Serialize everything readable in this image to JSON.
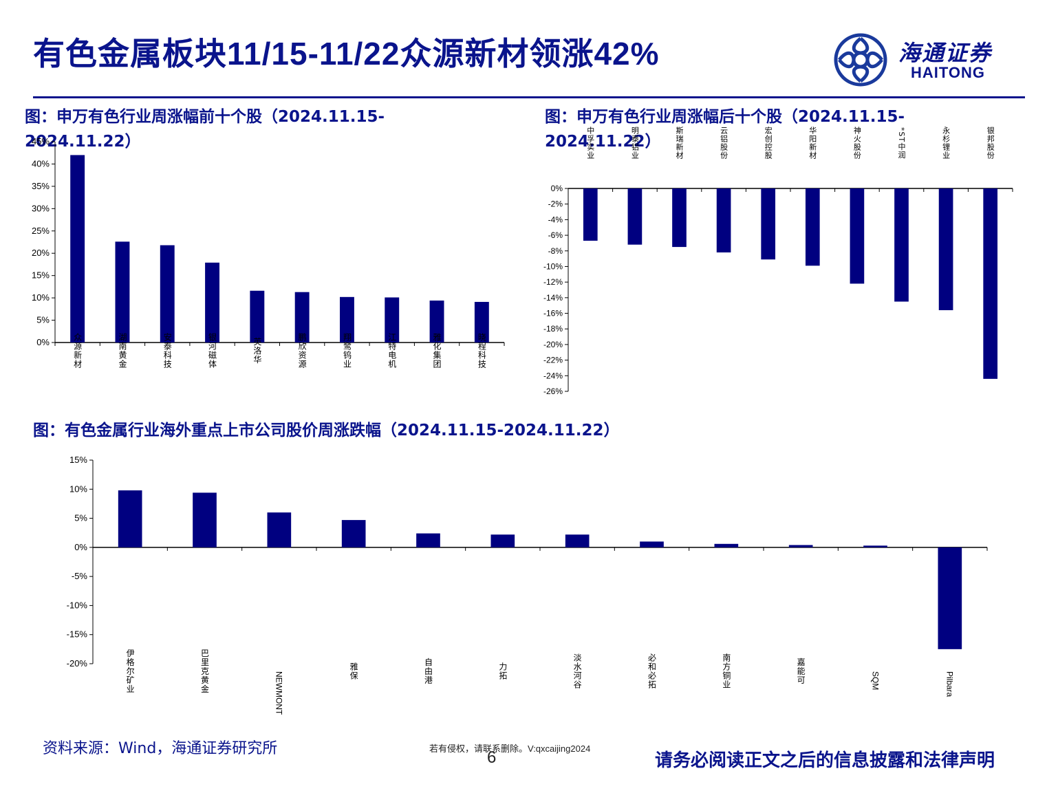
{
  "header": {
    "title": "有色金属板块11/15-11/22众源新材领涨42%",
    "logo_cn": "海通证券",
    "logo_en": "HAITONG"
  },
  "captions": {
    "chart1_line1": "图：申万有色行业周涨幅前十个股（2024.11.15-",
    "chart1_line2": "2024.11.22）",
    "chart2_line1": "图：申万有色行业周涨幅后十个股（2024.11.15-",
    "chart2_line2": "2024.11.22）",
    "chart3": "图：有色金属行业海外重点上市公司股价周涨跌幅（2024.11.15-2024.11.22）"
  },
  "footer": {
    "source": "资料来源：Wind，海通证券研究所",
    "note": "若有侵权，请联系删除。V:qxcaijing2024",
    "page": "6",
    "legal": "请务必阅读正文之后的信息披露和法律声明"
  },
  "colors": {
    "bar": "#000080",
    "brand": "#0a148c",
    "axis": "#000000"
  },
  "chart_data": [
    {
      "type": "bar",
      "title": "申万有色行业周涨幅前十个股（2024.11.15-2024.11.22）",
      "categories": [
        "众源新材",
        "湖南黄金",
        "安泰科技",
        "银河磁体",
        "英洛华",
        "鹏欣资源",
        "翔鹭钨业",
        "江特电机",
        "雅化集团",
        "晓程科技"
      ],
      "values": [
        42.0,
        22.6,
        21.8,
        17.9,
        11.6,
        11.3,
        10.2,
        10.1,
        9.4,
        9.1
      ],
      "ylim": [
        0,
        45
      ],
      "yticks": [
        0,
        5,
        10,
        15,
        20,
        25,
        30,
        35,
        40,
        45
      ],
      "ytick_labels": [
        "0%",
        "5%",
        "10%",
        "15%",
        "20%",
        "25%",
        "30%",
        "35%",
        "40%",
        "45%"
      ],
      "unit": "%",
      "label_position": "bottom"
    },
    {
      "type": "bar",
      "title": "申万有色行业周涨幅后十个股（2024.11.15-2024.11.22）",
      "categories": [
        "中孚实业",
        "明泰铝业",
        "斯瑞新材",
        "云铝股份",
        "宏创控股",
        "华阳新材",
        "神火股份",
        "*ST中润",
        "永杉锂业",
        "银邦股份"
      ],
      "values": [
        -6.7,
        -7.2,
        -7.5,
        -8.2,
        -9.1,
        -9.9,
        -12.2,
        -14.5,
        -15.6,
        -24.4
      ],
      "ylim": [
        -26,
        0
      ],
      "yticks": [
        0,
        -2,
        -4,
        -6,
        -8,
        -10,
        -12,
        -14,
        -16,
        -18,
        -20,
        -22,
        -24,
        -26
      ],
      "ytick_labels": [
        "0%",
        "-2%",
        "-4%",
        "-6%",
        "-8%",
        "-10%",
        "-12%",
        "-14%",
        "-16%",
        "-18%",
        "-20%",
        "-22%",
        "-24%",
        "-26%"
      ],
      "unit": "%",
      "label_position": "top"
    },
    {
      "type": "bar",
      "title": "有色金属行业海外重点上市公司股价周涨跌幅（2024.11.15-2024.11.22）",
      "categories": [
        "伊格尔矿业",
        "巴里克黄金",
        "NEWMONT",
        "雅保",
        "自由港",
        "力拓",
        "淡水河谷",
        "必和必拓",
        "南方铜业",
        "嘉能可",
        "SQM",
        "Pilbara"
      ],
      "values": [
        9.8,
        9.4,
        6.0,
        4.7,
        2.4,
        2.2,
        2.2,
        1.0,
        0.6,
        0.4,
        0.3,
        -17.5
      ],
      "ylim": [
        -20,
        15
      ],
      "yticks": [
        15,
        10,
        5,
        0,
        -5,
        -10,
        -15,
        -20
      ],
      "ytick_labels": [
        "15%",
        "10%",
        "5%",
        "0%",
        "-5%",
        "-10%",
        "-15%",
        "-20%"
      ],
      "unit": "%",
      "label_position": "bottom"
    }
  ]
}
